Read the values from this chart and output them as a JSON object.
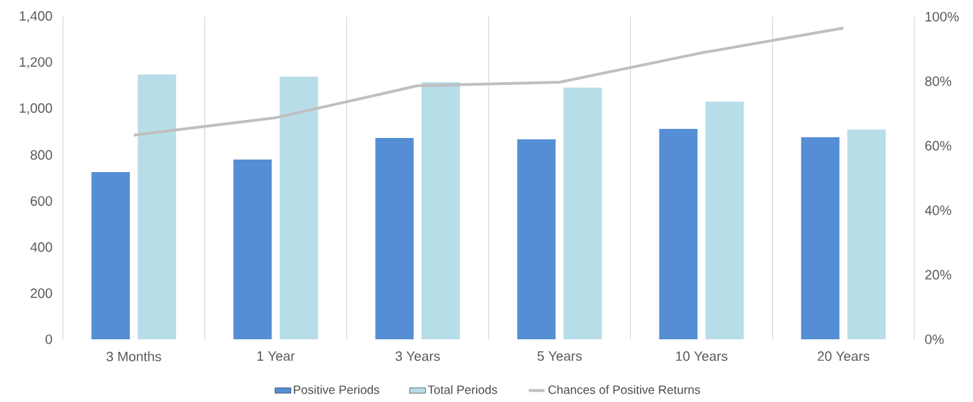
{
  "chart_data": {
    "type": "bar",
    "categories": [
      "3 Months",
      "1 Year",
      "3 Years",
      "5 Years",
      "10 Years",
      "20 Years"
    ],
    "series": [
      {
        "name": "Positive Periods",
        "color": "#558ed5",
        "values": [
          726,
          780,
          874,
          868,
          913,
          877
        ]
      },
      {
        "name": "Total Periods",
        "color": "#b7dde8",
        "values": [
          1149,
          1140,
          1116,
          1092,
          1031,
          910
        ]
      },
      {
        "name": "Chances of Positive Returns",
        "type": "line",
        "axis": "y2",
        "color": "#bfbfbf",
        "values": [
          63.3,
          68.7,
          78.6,
          79.7,
          88.8,
          96.5
        ]
      }
    ],
    "ylim": [
      0,
      1400
    ],
    "yticks": [
      0,
      200,
      400,
      600,
      800,
      {
        "value": 1000,
        "label": "1,000"
      },
      {
        "value": 1200,
        "label": "1,200"
      },
      {
        "value": 1400,
        "label": "1,400"
      }
    ],
    "y2lim": [
      0,
      100
    ],
    "y2ticks": [
      {
        "value": 0,
        "label": "0%"
      },
      {
        "value": 20,
        "label": "20%"
      },
      {
        "value": 40,
        "label": "40%"
      },
      {
        "value": 60,
        "label": "60%"
      },
      {
        "value": 80,
        "label": "80%"
      },
      {
        "value": 100,
        "label": "100%"
      }
    ],
    "grid": "x",
    "legend": "bottom",
    "marker": "none"
  }
}
